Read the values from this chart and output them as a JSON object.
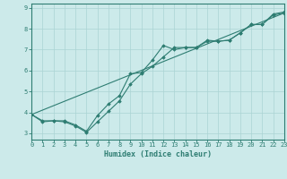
{
  "xlabel": "Humidex (Indice chaleur)",
  "x": [
    0,
    1,
    2,
    3,
    4,
    5,
    6,
    7,
    8,
    9,
    10,
    11,
    12,
    13,
    14,
    15,
    16,
    17,
    18,
    19,
    20,
    21,
    22,
    23
  ],
  "line1": [
    3.9,
    3.6,
    3.6,
    3.6,
    3.4,
    3.1,
    3.85,
    4.4,
    4.8,
    5.85,
    5.9,
    6.5,
    7.2,
    7.0,
    7.1,
    7.1,
    7.45,
    7.4,
    7.45,
    7.8,
    8.2,
    8.2,
    8.7,
    8.8
  ],
  "line2": [
    3.9,
    3.55,
    3.6,
    3.55,
    3.35,
    3.05,
    3.55,
    4.05,
    4.55,
    5.35,
    5.85,
    6.2,
    6.65,
    7.1,
    7.1,
    7.1,
    7.4,
    7.4,
    7.45,
    7.8,
    8.2,
    8.2,
    8.65,
    8.75
  ],
  "line3_x": [
    0,
    23
  ],
  "line3_y": [
    3.9,
    8.75
  ],
  "line_color": "#2e7d72",
  "bg_color": "#cceaea",
  "grid_color": "#aad4d4",
  "axis_color": "#2e7d72",
  "xlim": [
    0,
    23
  ],
  "ylim": [
    2.7,
    9.2
  ],
  "yticks": [
    3,
    4,
    5,
    6,
    7,
    8,
    9
  ],
  "xticks": [
    0,
    1,
    2,
    3,
    4,
    5,
    6,
    7,
    8,
    9,
    10,
    11,
    12,
    13,
    14,
    15,
    16,
    17,
    18,
    19,
    20,
    21,
    22,
    23
  ]
}
